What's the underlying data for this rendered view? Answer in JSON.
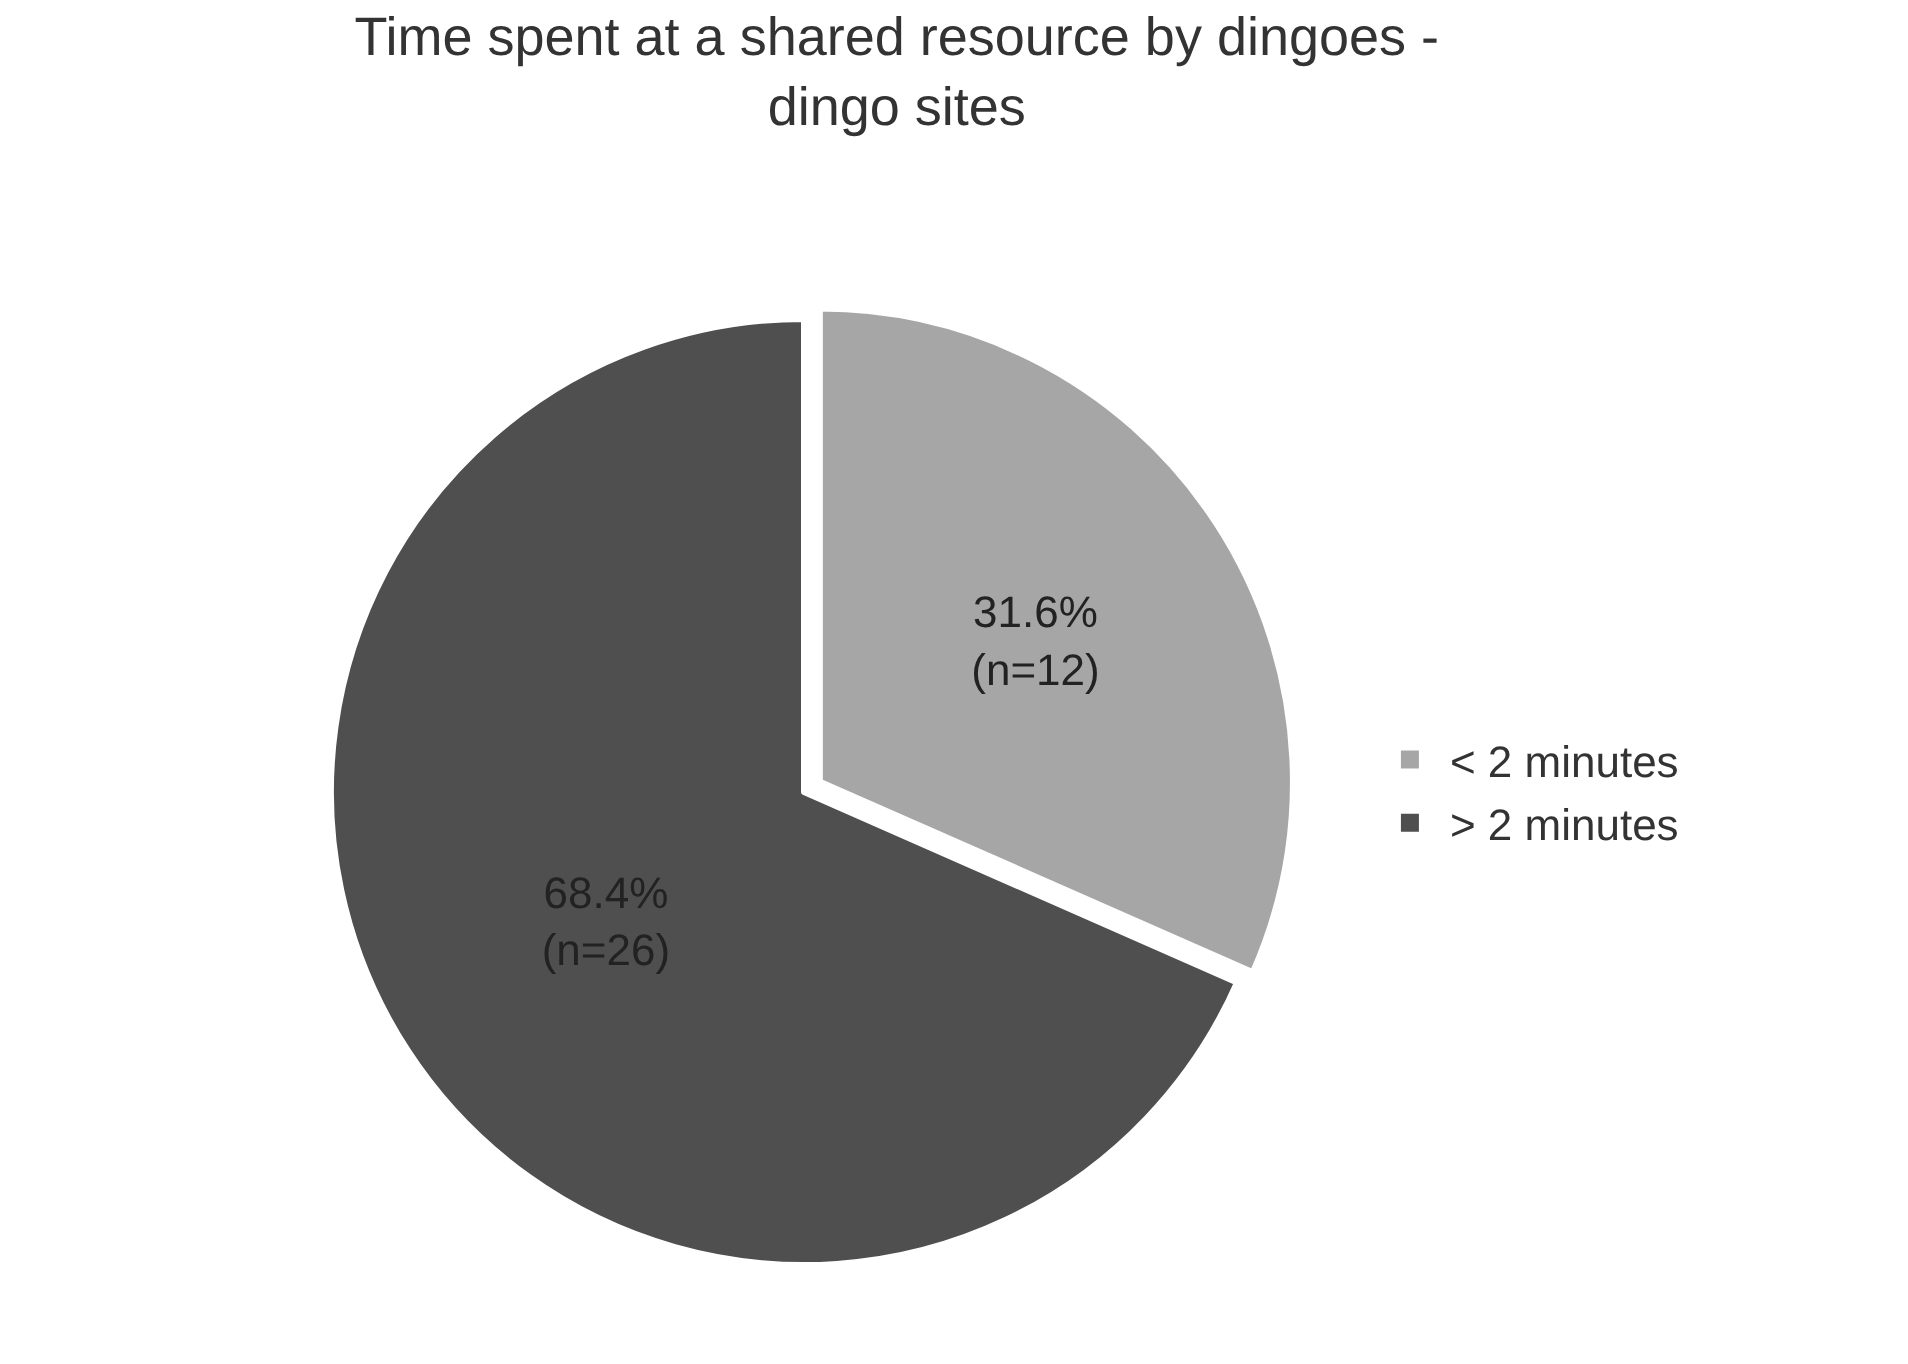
{
  "chart_data": {
    "type": "pie",
    "title": "Time spent at a shared resource by dingoes -\ndingo sites",
    "categories": [
      "< 2 minutes",
      "> 2 minutes"
    ],
    "values": [
      31.6,
      68.4
    ],
    "colors": [
      "#a6a6a6",
      "#4f4f4f"
    ],
    "value_labels": [
      "31.6%\n(n=12)",
      "68.4%\n(n=26)"
    ],
    "legend": "right"
  }
}
